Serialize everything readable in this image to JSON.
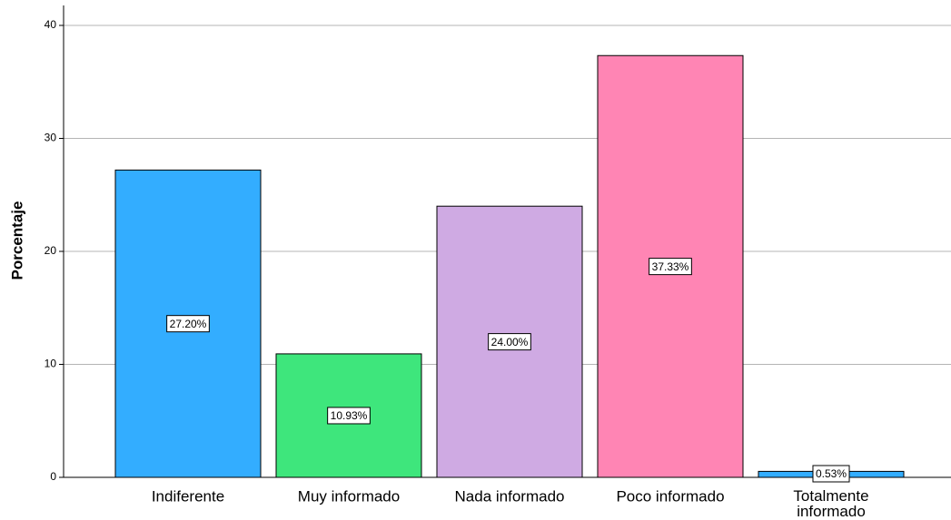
{
  "chart_data": {
    "type": "bar",
    "y_label": "Porcentaje",
    "categories": [
      "Indiferente",
      "Muy informado",
      "Nada informado",
      "Poco informado",
      "Totalmente informado"
    ],
    "values": [
      27.2,
      10.93,
      24.0,
      37.33,
      0.53
    ],
    "value_labels": [
      "27.20%",
      "10.93%",
      "24.00%",
      "37.33%",
      "0.53%"
    ],
    "colors": [
      "#33adff",
      "#3ee67c",
      "#cfaae3",
      "#ff85b4",
      "#33adff"
    ],
    "ylim": [
      0,
      40
    ],
    "yticks": [
      0,
      10,
      20,
      30,
      40
    ],
    "grid": true
  }
}
